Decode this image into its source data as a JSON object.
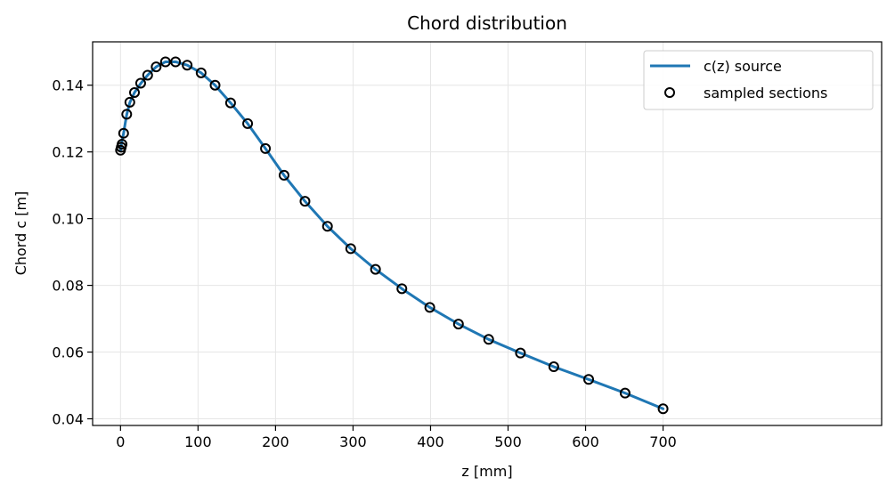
{
  "chart_data": {
    "type": "line",
    "title": "Chord distribution",
    "xlabel": "z [mm]",
    "ylabel": "Chord c [m]",
    "xlim": [
      -36,
      982
    ],
    "ylim": [
      0.038,
      0.153
    ],
    "x_ticks": [
      0,
      100,
      200,
      300,
      400,
      500,
      600,
      700
    ],
    "x_tick_labels": [
      "0",
      "100",
      "200",
      "300",
      "400",
      "500",
      "600",
      "700"
    ],
    "y_ticks": [
      0.04,
      0.06,
      0.08,
      0.1,
      0.12,
      0.14
    ],
    "y_tick_labels": [
      "0.04",
      "0.06",
      "0.08",
      "0.10",
      "0.12",
      "0.14"
    ],
    "grid": true,
    "legend_position": "top-right",
    "series": [
      {
        "name": "c(z) source",
        "kind": "line",
        "color": "#1f77b4",
        "x": [
          0,
          0.5,
          1,
          2,
          4,
          6,
          8,
          12,
          18,
          26,
          35,
          46,
          58,
          71,
          86,
          104,
          122,
          142,
          164,
          187,
          211,
          238,
          267,
          297,
          329,
          363,
          399,
          436,
          475,
          516,
          559,
          604,
          651,
          700
        ],
        "y": [
          0.1205,
          0.1212,
          0.1221,
          0.1234,
          0.1256,
          0.1285,
          0.1312,
          0.1348,
          0.1378,
          0.1405,
          0.143,
          0.1455,
          0.147,
          0.147,
          0.146,
          0.1437,
          0.14,
          0.1347,
          0.1285,
          0.121,
          0.113,
          0.1052,
          0.0977,
          0.091,
          0.0848,
          0.079,
          0.0734,
          0.0684,
          0.0638,
          0.0597,
          0.0556,
          0.0518,
          0.0477,
          0.043
        ]
      },
      {
        "name": "sampled sections",
        "kind": "scatter",
        "color": "#000000",
        "x": [
          0,
          1,
          2,
          4,
          8,
          12,
          18,
          26,
          35,
          46,
          58,
          71,
          86,
          104,
          122,
          142,
          164,
          187,
          211,
          238,
          267,
          297,
          329,
          363,
          399,
          436,
          475,
          516,
          559,
          604,
          651,
          700
        ],
        "y": [
          0.1205,
          0.1214,
          0.1223,
          0.1256,
          0.1313,
          0.1349,
          0.1378,
          0.1406,
          0.143,
          0.1455,
          0.147,
          0.147,
          0.146,
          0.1437,
          0.14,
          0.1347,
          0.1285,
          0.121,
          0.113,
          0.1052,
          0.0977,
          0.091,
          0.0848,
          0.079,
          0.0734,
          0.0684,
          0.0638,
          0.0597,
          0.0556,
          0.0518,
          0.0477,
          0.043
        ]
      }
    ]
  }
}
